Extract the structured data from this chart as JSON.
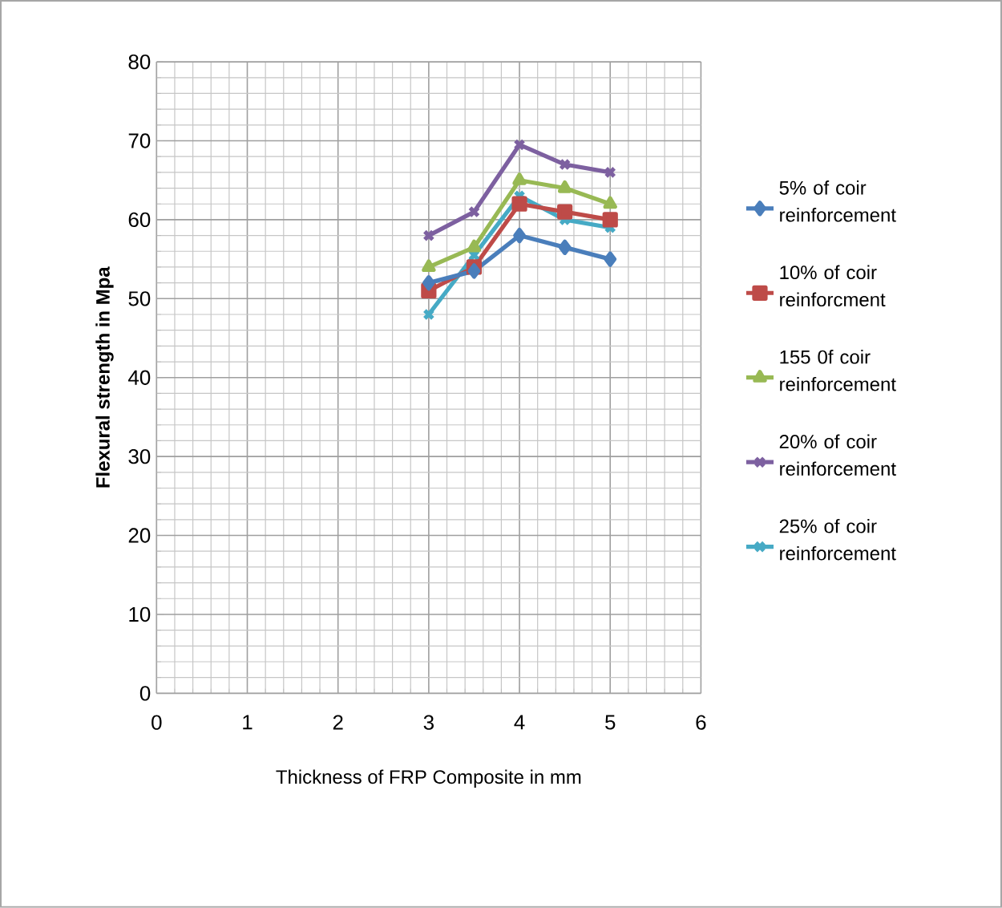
{
  "chart_data": {
    "type": "line",
    "xlabel": "Thickness of FRP Composite in mm",
    "ylabel": "Flexural strength in Mpa",
    "x": [
      3,
      3.5,
      4,
      4.5,
      5
    ],
    "series": [
      {
        "name": "5% of coir reinforcement",
        "color": "#4a7ebb",
        "marker": "diamond",
        "values": [
          52,
          53.5,
          58,
          56.5,
          55
        ]
      },
      {
        "name": "10% of coir reinforcment",
        "color": "#be4b48",
        "marker": "square",
        "values": [
          51,
          54,
          62,
          61,
          60
        ]
      },
      {
        "name": "155 0f coir reinforcement",
        "color": "#98b954",
        "marker": "triangle",
        "values": [
          54,
          56.5,
          65,
          64,
          62
        ]
      },
      {
        "name": "20% of coir reinforcement",
        "color": "#7d60a0",
        "marker": "cross",
        "values": [
          58,
          61,
          69.5,
          67,
          66
        ]
      },
      {
        "name": "25% of coir reinforcement",
        "color": "#46aac5",
        "marker": "cross",
        "values": [
          48,
          55.5,
          63,
          60,
          59
        ]
      }
    ],
    "xlim": [
      0,
      6
    ],
    "ylim": [
      0,
      80
    ],
    "xticks": [
      0,
      1,
      2,
      3,
      4,
      5,
      6
    ],
    "yticks": [
      0,
      10,
      20,
      30,
      40,
      50,
      60,
      70,
      80
    ],
    "grid": true,
    "legend": "right",
    "line_style": "solid"
  }
}
